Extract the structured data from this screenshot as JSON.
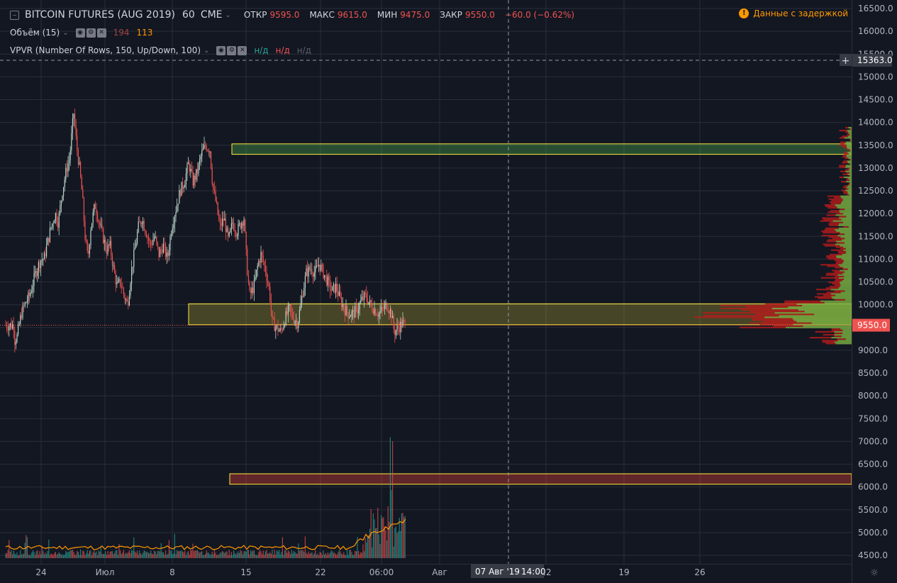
{
  "header": {
    "symbol": "BITCOIN FUTURES (AUG 2019)",
    "interval": "60",
    "exchange": "CME",
    "open_label": "ОТКР",
    "open": "9595.0",
    "high_label": "МАКС",
    "high": "9615.0",
    "low_label": "МИН",
    "low": "9475.0",
    "close_label": "ЗАКР",
    "close": "9550.0",
    "change": "−60.0 (−0.62%)",
    "delayed": "Данные с задержкой"
  },
  "indicators": {
    "volume": {
      "label": "Объём (15)",
      "value1": "194",
      "value2": "113"
    },
    "vpvr": {
      "label": "VPVR (Number Of Rows, 150, Up/Down, 100)",
      "v1": "н/д",
      "v2": "н/д",
      "v3": "н/д"
    }
  },
  "crosshair": {
    "price_label": "15363.0",
    "time_label_date": "07 Авг '19",
    "time_label_time": "14:00"
  },
  "chart_data": {
    "type": "candlestick",
    "y_ticks": [
      "16500.0",
      "16000.0",
      "15500.0",
      "15000.0",
      "14500.0",
      "14000.0",
      "13500.0",
      "13000.0",
      "12500.0",
      "12000.0",
      "11500.0",
      "11000.0",
      "10500.0",
      "10000.0",
      "9500.0",
      "9000.0",
      "8500.0",
      "8000.0",
      "7500.0",
      "7000.0",
      "6500.0",
      "6000.0",
      "5500.0",
      "5000.0",
      "4500.0"
    ],
    "ylim": [
      4400,
      16700
    ],
    "x_ticks": [
      "24",
      "Июл",
      "8",
      "15",
      "22",
      "06:00",
      "Авг",
      "12",
      "19",
      "26"
    ],
    "last_price": "9550.0",
    "price_path": [
      [
        20,
        9200
      ],
      [
        24,
        9300
      ],
      [
        30,
        9800
      ],
      [
        35,
        10000
      ],
      [
        38,
        10100
      ],
      [
        42,
        10200
      ],
      [
        50,
        10700
      ],
      [
        55,
        10900
      ],
      [
        58,
        11000
      ],
      [
        62,
        11000
      ],
      [
        66,
        11300
      ],
      [
        72,
        11700
      ],
      [
        78,
        12000
      ],
      [
        82,
        11800
      ],
      [
        88,
        12500
      ],
      [
        94,
        13000
      ],
      [
        98,
        13200
      ],
      [
        102,
        13900
      ],
      [
        104,
        14200
      ],
      [
        108,
        13500
      ],
      [
        112,
        13000
      ],
      [
        116,
        12400
      ],
      [
        120,
        11500
      ],
      [
        124,
        11000
      ],
      [
        128,
        11700
      ],
      [
        134,
        12200
      ],
      [
        140,
        11800
      ],
      [
        145,
        11500
      ],
      [
        150,
        11200
      ],
      [
        155,
        11300
      ],
      [
        160,
        10800
      ],
      [
        165,
        10400
      ],
      [
        170,
        10500
      ],
      [
        175,
        10200
      ],
      [
        180,
        10000
      ],
      [
        185,
        10700
      ],
      [
        190,
        11200
      ],
      [
        195,
        11700
      ],
      [
        200,
        11900
      ],
      [
        206,
        11600
      ],
      [
        212,
        11300
      ],
      [
        218,
        11500
      ],
      [
        224,
        11100
      ],
      [
        230,
        11300
      ],
      [
        236,
        11000
      ],
      [
        242,
        11700
      ],
      [
        248,
        12100
      ],
      [
        254,
        12500
      ],
      [
        260,
        12700
      ],
      [
        266,
        13100
      ],
      [
        272,
        12700
      ],
      [
        278,
        12900
      ],
      [
        284,
        13300
      ],
      [
        290,
        13500
      ],
      [
        296,
        13400
      ],
      [
        300,
        12600
      ],
      [
        305,
        12200
      ],
      [
        310,
        11700
      ],
      [
        316,
        11900
      ],
      [
        322,
        11400
      ],
      [
        328,
        11800
      ],
      [
        334,
        11600
      ],
      [
        340,
        11800
      ],
      [
        344,
        11900
      ],
      [
        348,
        10900
      ],
      [
        352,
        10200
      ],
      [
        358,
        10400
      ],
      [
        364,
        10900
      ],
      [
        368,
        11100
      ],
      [
        374,
        10800
      ],
      [
        380,
        10300
      ],
      [
        384,
        9600
      ],
      [
        390,
        9500
      ],
      [
        396,
        9400
      ],
      [
        402,
        9700
      ],
      [
        408,
        9900
      ],
      [
        414,
        9700
      ],
      [
        420,
        9600
      ],
      [
        426,
        10200
      ],
      [
        432,
        10700
      ],
      [
        438,
        10800
      ],
      [
        444,
        10700
      ],
      [
        450,
        10900
      ],
      [
        456,
        10700
      ],
      [
        462,
        10500
      ],
      [
        468,
        10300
      ],
      [
        474,
        10400
      ],
      [
        480,
        10100
      ],
      [
        486,
        9900
      ],
      [
        492,
        9800
      ],
      [
        498,
        9800
      ],
      [
        504,
        9900
      ],
      [
        510,
        10100
      ],
      [
        516,
        10200
      ],
      [
        522,
        10000
      ],
      [
        528,
        9900
      ],
      [
        534,
        9800
      ],
      [
        540,
        9900
      ],
      [
        546,
        10000
      ],
      [
        552,
        9800
      ],
      [
        556,
        9400
      ],
      [
        562,
        9500
      ],
      [
        568,
        9600
      ],
      [
        572,
        9550
      ]
    ],
    "zones": [
      {
        "name": "resistance-zone",
        "low": 13300,
        "high": 13530,
        "color": "#4caf50"
      },
      {
        "name": "support-zone",
        "low": 9560,
        "high": 10020,
        "color": "#ffeb3b"
      },
      {
        "name": "demand-zone",
        "low": 6060,
        "high": 6290,
        "color": "#f44336"
      }
    ],
    "grid": true,
    "colors": {
      "up": "#26a69a",
      "down": "#ef5350",
      "background": "#131722",
      "grid": "#2a2e39"
    }
  }
}
